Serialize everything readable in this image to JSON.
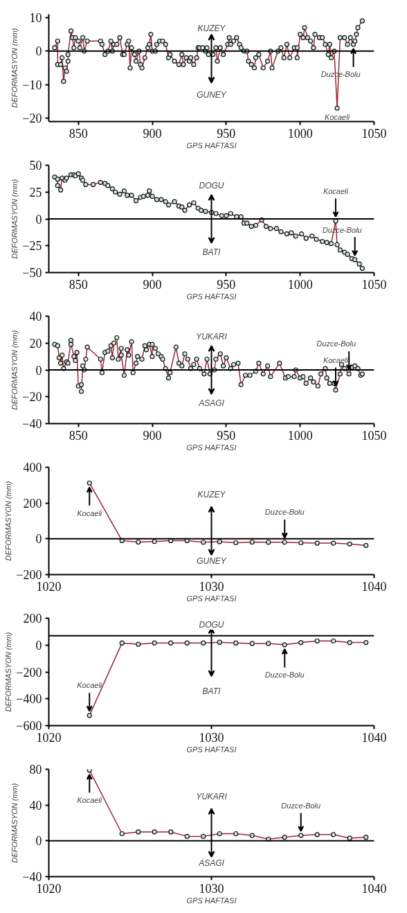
{
  "chart_data": [
    {
      "type": "line",
      "xlabel": "GPS HAFTASI",
      "ylabel": "DEFORMASYON (mm)",
      "xlim": [
        830,
        1050
      ],
      "xticks": [
        850,
        900,
        950,
        1000,
        1050
      ],
      "ylim": [
        -21,
        11
      ],
      "yticks": [
        -20,
        -10,
        0,
        10
      ],
      "marker": "circle",
      "line_style": "solid",
      "series": [
        {
          "color": "#9b2335",
          "x": [
            834,
            836,
            836,
            838,
            839,
            840,
            841,
            842,
            843,
            843,
            845,
            846,
            847,
            848,
            850,
            851,
            853,
            854,
            856,
            865,
            866,
            868,
            870,
            872,
            873,
            874,
            876,
            878,
            880,
            881,
            883,
            884,
            885,
            886,
            888,
            889,
            891,
            892,
            893,
            895,
            897,
            898,
            899,
            900,
            902,
            903,
            905,
            907,
            909,
            911,
            912,
            915,
            918,
            920,
            921,
            923,
            925,
            926,
            928,
            930,
            931,
            932,
            934,
            936,
            937,
            938,
            941,
            943,
            944,
            946,
            948,
            951,
            952,
            953,
            955,
            957,
            959,
            960,
            962,
            964,
            965,
            967,
            969,
            970,
            972,
            975,
            978,
            980,
            981,
            985,
            987,
            989,
            991,
            993,
            996,
            998,
            998,
            1000,
            1002,
            1003,
            1005,
            1007,
            1009,
            1010,
            1013,
            1015,
            1017,
            1019,
            1020,
            1021,
            1023,
            1025,
            1027,
            1030,
            1032,
            1034,
            1036,
            1037,
            1038,
            1039,
            1042
          ],
          "values": [
            1,
            3,
            -4,
            -4,
            -2,
            -9,
            -5,
            -6,
            -3,
            -1,
            6,
            4,
            1,
            4,
            3,
            1,
            4,
            0,
            3,
            3,
            2,
            -1,
            0,
            3,
            0,
            2,
            2,
            4,
            -1,
            -1,
            2,
            3,
            -5,
            1,
            -1,
            -3,
            0,
            -4,
            -5,
            -2,
            1,
            2,
            5,
            0,
            0,
            2,
            3,
            3,
            2,
            -2,
            -1,
            -3,
            -4,
            -1,
            -4,
            -2,
            -3,
            -2,
            -4,
            -2,
            1,
            1,
            1,
            0,
            1,
            -1,
            -1,
            1,
            -3,
            1,
            -1,
            2,
            4,
            2,
            3,
            4,
            2,
            1,
            0,
            0,
            -3,
            -4,
            -5,
            -2,
            -1,
            -5,
            -3,
            0,
            -5,
            0,
            1,
            -2,
            2,
            -2,
            1,
            1,
            -2,
            5,
            4,
            7,
            4,
            3,
            1,
            5,
            4,
            4,
            2,
            -1,
            2,
            -2,
            0,
            -17,
            4,
            4,
            2,
            4,
            2,
            3,
            5,
            7,
            9
          ]
        }
      ],
      "ref_lines": [
        {
          "axis": "y",
          "value": 0
        }
      ],
      "annotations": [
        "KUZEY",
        "GUNEY",
        {
          "text": "Duzce-Bolu",
          "x": 1036,
          "y": 2
        },
        {
          "text": "Kocaeli",
          "x": 1025,
          "y": -17
        }
      ]
    },
    {
      "type": "line",
      "xlabel": "GPS HAFTASI",
      "ylabel": "DEFORMASYON (mm)",
      "xlim": [
        830,
        1050
      ],
      "xticks": [
        850,
        900,
        950,
        1000,
        1050
      ],
      "ylim": [
        -50,
        50
      ],
      "yticks": [
        -50,
        -25,
        0,
        25,
        50
      ],
      "marker": "circle",
      "line_style": "solid",
      "series": [
        {
          "color": "#9b2335",
          "x": [
            834,
            836,
            836,
            838,
            839,
            841,
            842,
            845,
            847,
            848,
            850,
            852,
            853,
            855,
            860,
            865,
            868,
            870,
            873,
            875,
            878,
            881,
            883,
            886,
            889,
            892,
            894,
            897,
            898,
            900,
            903,
            906,
            909,
            911,
            915,
            918,
            920,
            922,
            925,
            928,
            931,
            933,
            936,
            940,
            943,
            947,
            950,
            953,
            957,
            960,
            962,
            964,
            967,
            970,
            974,
            977,
            980,
            984,
            987,
            991,
            994,
            997,
            1001,
            1004,
            1008,
            1011,
            1015,
            1018,
            1021,
            1024,
            1025,
            1027,
            1030,
            1032,
            1035,
            1037,
            1040,
            1042
          ],
          "values": [
            39,
            37,
            31,
            27,
            38,
            36,
            38,
            41,
            41,
            40,
            42,
            38,
            36,
            32,
            32,
            34,
            33,
            31,
            28,
            25,
            23,
            26,
            22,
            22,
            17,
            20,
            21,
            22,
            26,
            21,
            18,
            18,
            16,
            13,
            16,
            12,
            11,
            8,
            13,
            15,
            10,
            8,
            7,
            6,
            5,
            3,
            3,
            5,
            2,
            2,
            -4,
            -4,
            -7,
            -6,
            -1,
            -7,
            -9,
            -9,
            -12,
            -14,
            -13,
            -16,
            -14,
            -18,
            -16,
            -19,
            -21,
            -22,
            -23,
            -2,
            -24,
            -29,
            -31,
            -33,
            -37,
            -38,
            -42,
            -46
          ]
        }
      ],
      "ref_lines": [
        {
          "axis": "y",
          "value": 0
        }
      ],
      "annotations": [
        "DOGU",
        "BATI",
        {
          "text": "Kocaeli",
          "x": 1024,
          "y": -2
        },
        {
          "text": "Duzce-Bolu",
          "x": 1037,
          "y": -38
        }
      ]
    },
    {
      "type": "line",
      "xlabel": "GPS HAFTASI",
      "ylabel": "DEFORMASYON (mm)",
      "xlim": [
        830,
        1050
      ],
      "xticks": [
        850,
        900,
        950,
        1000,
        1050
      ],
      "ylim": [
        -40,
        40
      ],
      "yticks": [
        -40,
        -20,
        0,
        20,
        40
      ],
      "marker": "circle",
      "line_style": "solid",
      "series": [
        {
          "color": "#9b2335",
          "x": [
            834,
            836,
            837,
            838,
            839,
            840,
            842,
            843,
            845,
            845,
            847,
            848,
            849,
            850,
            852,
            852,
            853,
            854,
            855,
            856,
            865,
            866,
            868,
            870,
            872,
            873,
            874,
            876,
            877,
            879,
            879,
            881,
            883,
            884,
            886,
            887,
            889,
            890,
            893,
            895,
            896,
            898,
            900,
            900,
            902,
            904,
            906,
            907,
            909,
            911,
            912,
            916,
            918,
            920,
            922,
            924,
            926,
            928,
            930,
            932,
            935,
            937,
            939,
            942,
            943,
            946,
            948,
            950,
            953,
            955,
            958,
            960,
            963,
            966,
            970,
            972,
            975,
            978,
            980,
            986,
            990,
            992,
            996,
            997,
            1000,
            1002,
            1004,
            1007,
            1009,
            1012,
            1014,
            1017,
            1018,
            1020,
            1023,
            1024,
            1027,
            1028,
            1030,
            1033,
            1035,
            1037,
            1039,
            1041,
            1042
          ],
          "values": [
            19,
            18,
            9,
            5,
            11,
            1,
            6,
            5,
            22,
            19,
            10,
            7,
            13,
            -12,
            -11,
            -16,
            3,
            0,
            8,
            17,
            8,
            -2,
            13,
            14,
            18,
            9,
            20,
            24,
            8,
            16,
            11,
            -4,
            15,
            11,
            21,
            -2,
            5,
            10,
            8,
            18,
            15,
            19,
            10,
            19,
            16,
            12,
            10,
            8,
            1,
            -6,
            -2,
            17,
            5,
            3,
            12,
            8,
            1,
            4,
            8,
            1,
            -3,
            8,
            -3,
            0,
            8,
            12,
            3,
            9,
            1,
            4,
            5,
            -11,
            -4,
            -4,
            -1,
            5,
            -3,
            3,
            -5,
            5,
            -6,
            -5,
            -5,
            0,
            -6,
            -5,
            -10,
            -6,
            -9,
            -12,
            -3,
            1,
            -6,
            -10,
            -10,
            -15,
            -3,
            4,
            1,
            -3,
            2,
            3,
            1,
            -4,
            -3
          ]
        }
      ],
      "ref_lines": [
        {
          "axis": "y",
          "value": 0
        }
      ],
      "annotations": [
        "YUKARI",
        "ASAGI",
        {
          "text": "Duzce-Bolu",
          "x": 1033,
          "y": -3
        },
        {
          "text": "Kocaeli",
          "x": 1024,
          "y": -15
        }
      ]
    },
    {
      "type": "line",
      "xlabel": "GPS HAFTASI",
      "ylabel": "DEFORMASYON (mm)",
      "xlim": [
        1020,
        1040
      ],
      "xticks": [
        1020,
        1030,
        1040
      ],
      "ylim": [
        -200,
        400
      ],
      "yticks": [
        -200,
        0,
        200,
        400
      ],
      "marker": "circle",
      "line_style": "solid",
      "series": [
        {
          "color": "#9b2335",
          "x": [
            1022.5,
            1024.5,
            1025.5,
            1026.5,
            1027.5,
            1028.5,
            1029.5,
            1030.5,
            1031.5,
            1032.5,
            1033.5,
            1034.5,
            1035.5,
            1036.5,
            1037.5,
            1038.5,
            1039.5
          ],
          "values": [
            312,
            -10,
            -18,
            -15,
            -10,
            -10,
            -19,
            -16,
            -22,
            -18,
            -19,
            -19,
            -22,
            -24,
            -24,
            -29,
            -37
          ]
        }
      ],
      "ref_lines": [
        {
          "axis": "y",
          "value": 0
        }
      ],
      "annotations": [
        "KUZEY",
        "GUNEY",
        {
          "text": "Kocaeli",
          "x": 1022.5,
          "y": 312
        },
        {
          "text": "Duzce-Bolu",
          "x": 1034.5,
          "y": -19
        }
      ]
    },
    {
      "type": "line",
      "xlabel": "GPS HAFTASI",
      "ylabel": "DEFORMASYON (mm)",
      "xlim": [
        1020,
        1040
      ],
      "xticks": [
        1020,
        1030,
        1040
      ],
      "ylim": [
        -600,
        200
      ],
      "yticks": [
        -600,
        -400,
        -200,
        0,
        200
      ],
      "marker": "circle",
      "line_style": "solid",
      "series": [
        {
          "color": "#9b2335",
          "x": [
            1022.5,
            1024.5,
            1025.5,
            1026.5,
            1027.5,
            1028.5,
            1029.5,
            1030.5,
            1031.5,
            1032.5,
            1033.5,
            1034.5,
            1035.5,
            1036.5,
            1037.5,
            1038.5,
            1039.5
          ],
          "values": [
            -524,
            16,
            6,
            16,
            16,
            16,
            16,
            21,
            16,
            12,
            12,
            2,
            19,
            31,
            31,
            19,
            19
          ]
        }
      ],
      "ref_lines": [
        {
          "axis": "y",
          "value": 70
        }
      ],
      "annotations": [
        "DOGU",
        "BATI",
        {
          "text": "Kocaeli",
          "x": 1022.5,
          "y": -524
        },
        {
          "text": "Duzce-Bolu",
          "x": 1034.5,
          "y": 2
        }
      ]
    },
    {
      "type": "line",
      "xlabel": "GPS HAFTASI",
      "ylabel": "DEFORMASYON (mm)",
      "xlim": [
        1020,
        1040
      ],
      "xticks": [
        1020,
        1030,
        1040
      ],
      "ylim": [
        -40,
        80
      ],
      "yticks": [
        -40,
        0,
        40,
        80
      ],
      "marker": "circle",
      "line_style": "solid",
      "series": [
        {
          "color": "#9b2335",
          "x": [
            1022.5,
            1024.5,
            1025.5,
            1026.5,
            1027.5,
            1028.5,
            1029.5,
            1030.5,
            1031.5,
            1032.5,
            1033.5,
            1034.5,
            1035.5,
            1036.5,
            1037.5,
            1038.5,
            1039.5
          ],
          "values": [
            79,
            8,
            10,
            10,
            10,
            5,
            5,
            8,
            8,
            6,
            2,
            4,
            6,
            7,
            7,
            3,
            4
          ]
        }
      ],
      "ref_lines": [
        {
          "axis": "y",
          "value": 0
        }
      ],
      "annotations": [
        "YUKARI",
        "ASAGI",
        {
          "text": "Kocaeli",
          "x": 1022.5,
          "y": 79
        },
        {
          "text": "Duzce-Bolu",
          "x": 1035.5,
          "y": 6
        }
      ]
    }
  ]
}
